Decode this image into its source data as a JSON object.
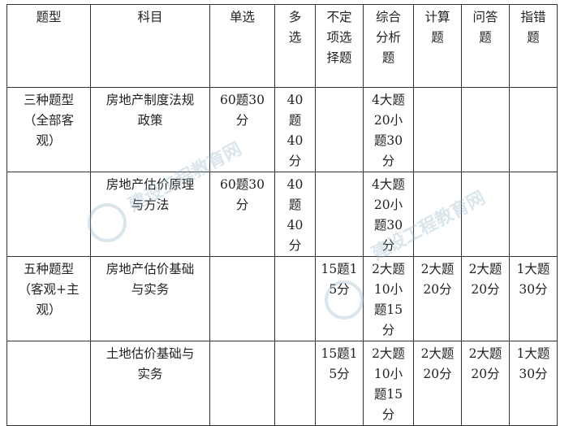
{
  "table": {
    "headers": [
      "题型",
      "科目",
      "单选",
      "多选",
      "不定项选择题",
      "综合分析题",
      "计算题",
      "问答题",
      "指错题"
    ],
    "rows": [
      [
        "三种题型（全部客观）",
        "房地产制度法规政策",
        "60题30分",
        "40题40分",
        "",
        "4大题20小题30分",
        "",
        "",
        ""
      ],
      [
        "",
        "房地产估价原理与方法",
        "60题30分",
        "40题40分",
        "",
        "4大题20小题30分",
        "",
        "",
        ""
      ],
      [
        "五种题型（客观+主观）",
        "房地产估价基础与实务",
        "",
        "",
        "15题15分",
        "2大题10小题15分",
        "2大题20分",
        "2大题20分",
        "1大题30分"
      ],
      [
        "",
        "土地估价基础与实务",
        "",
        "",
        "15题15分",
        "2大题10小题15分",
        "2大题20分",
        "2大题20分",
        "1大题30分"
      ]
    ]
  },
  "watermark": {
    "text": "建设工程教育网",
    "url_text": "www.jianshe99.com"
  }
}
